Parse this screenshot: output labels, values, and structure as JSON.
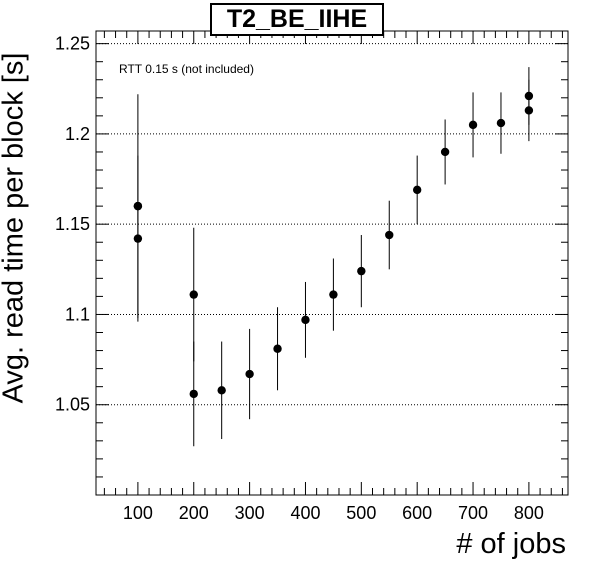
{
  "chart_data": {
    "type": "scatter",
    "title": "T2_BE_IIHE",
    "annotation": "RTT 0.15 s (not included)",
    "xlabel": "# of jobs",
    "ylabel": "Avg. read time per block [s]",
    "xlim": [
      25,
      870
    ],
    "ylim": [
      1.0,
      1.257
    ],
    "x_ticks": [
      100,
      200,
      300,
      400,
      500,
      600,
      700,
      800
    ],
    "x_tick_labels": [
      "100",
      "200",
      "300",
      "400",
      "500",
      "600",
      "700",
      "800"
    ],
    "y_ticks": [
      1.05,
      1.1,
      1.15,
      1.2,
      1.25
    ],
    "y_tick_labels": [
      "1.05",
      "1.1",
      "1.15",
      "1.2",
      "1.25"
    ],
    "grid": "horizontal dotted at y major ticks",
    "points": [
      {
        "x": 100,
        "y": 1.16,
        "err": 0
      },
      {
        "x": 100,
        "y": 1.142,
        "err": 0.046
      },
      {
        "x": 100,
        "y": 1.16,
        "err": 0.062
      },
      {
        "x": 200,
        "y": 1.111,
        "err": 0.037
      },
      {
        "x": 200,
        "y": 1.056,
        "err": 0.029
      },
      {
        "x": 250,
        "y": 1.058,
        "err": 0.027
      },
      {
        "x": 300,
        "y": 1.067,
        "err": 0.025
      },
      {
        "x": 350,
        "y": 1.081,
        "err": 0.023
      },
      {
        "x": 400,
        "y": 1.097,
        "err": 0.021
      },
      {
        "x": 450,
        "y": 1.111,
        "err": 0.02
      },
      {
        "x": 500,
        "y": 1.124,
        "err": 0.02
      },
      {
        "x": 550,
        "y": 1.144,
        "err": 0.019
      },
      {
        "x": 600,
        "y": 1.169,
        "err": 0.019
      },
      {
        "x": 650,
        "y": 1.19,
        "err": 0.018
      },
      {
        "x": 700,
        "y": 1.205,
        "err": 0.018
      },
      {
        "x": 750,
        "y": 1.206,
        "err": 0.017
      },
      {
        "x": 800,
        "y": 1.213,
        "err": 0.017
      },
      {
        "x": 800,
        "y": 1.221,
        "err": 0.016
      }
    ],
    "colors": {
      "marker": "#000000",
      "grid": "#000000",
      "frame": "#000000"
    }
  }
}
